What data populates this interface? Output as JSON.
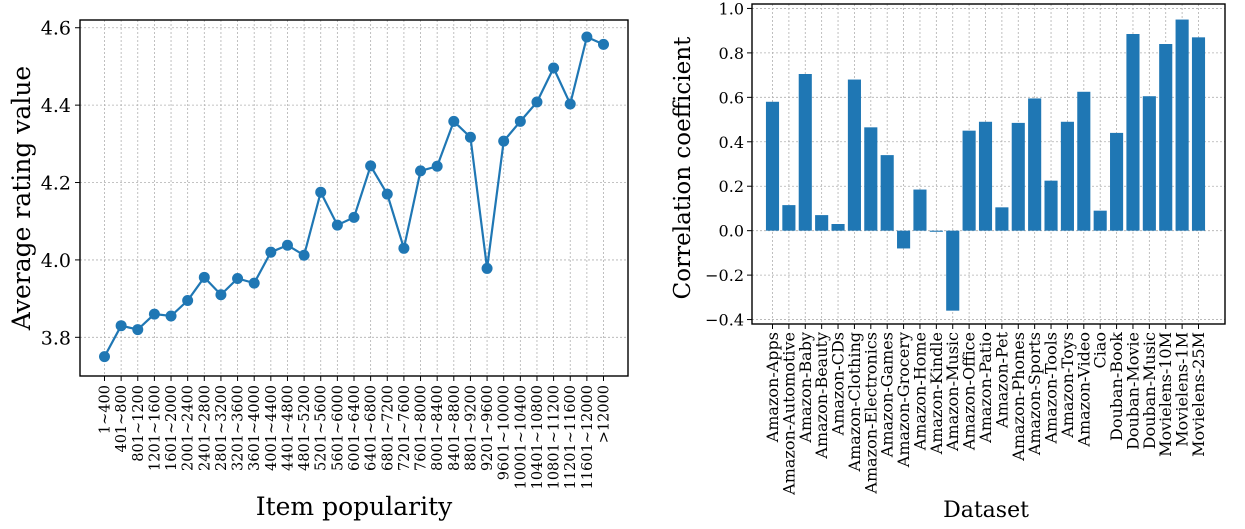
{
  "chart_data": [
    {
      "type": "line",
      "xlabel": "Item popularity",
      "ylabel": "Average rating value",
      "categories": [
        "1~400",
        "401~800",
        "801~1200",
        "1201~1600",
        "1601~2000",
        "2001~2400",
        "2401~2800",
        "2801~3200",
        "3201~3600",
        "3601~4000",
        "4001~4400",
        "4401~4800",
        "4801~5200",
        "5201~5600",
        "5601~6000",
        "6001~6400",
        "6401~6800",
        "6801~7200",
        "7201~7600",
        "7601~8000",
        "8001~8400",
        "8401~8800",
        "8801~9200",
        "9201~9600",
        "9601~10000",
        "10001~10400",
        "10401~10800",
        "10801~11200",
        "11201~11600",
        "11601~12000",
        ">12000"
      ],
      "values": [
        3.75,
        3.83,
        3.82,
        3.86,
        3.855,
        3.895,
        3.955,
        3.91,
        3.952,
        3.94,
        4.02,
        4.038,
        4.012,
        4.175,
        4.09,
        4.11,
        4.243,
        4.17,
        4.03,
        4.23,
        4.242,
        4.358,
        4.317,
        3.978,
        4.307,
        4.358,
        4.408,
        4.496,
        4.403,
        4.576,
        4.557
      ],
      "ylim": [
        3.7,
        4.62
      ],
      "yticks": [
        "3.8",
        "4.0",
        "4.2",
        "4.4",
        "4.6"
      ],
      "grid": true,
      "color": "#1f77b4"
    },
    {
      "type": "bar",
      "xlabel": "Dataset",
      "ylabel": "Correlation coefficient",
      "categories": [
        "Amazon-Apps",
        "Amazon-Automotive",
        "Amazon-Baby",
        "Amazon-Beauty",
        "Amazon-CDs",
        "Amazon-Clothing",
        "Amazon-Electronics",
        "Amazon-Games",
        "Amazon-Grocery",
        "Amazon-Home",
        "Amazon-Kindle",
        "Amazon-Music",
        "Amazon-Office",
        "Amazon-Patio",
        "Amazon-Pet",
        "Amazon-Phones",
        "Amazon-Sports",
        "Amazon-Tools",
        "Amazon-Toys",
        "Amazon-Video",
        "Ciao",
        "Douban-Book",
        "Douban-Movie",
        "Douban-Music",
        "Movielens-10M",
        "Movielens-1M",
        "Movielens-25M"
      ],
      "values": [
        0.58,
        0.115,
        0.705,
        0.07,
        0.03,
        0.68,
        0.465,
        0.34,
        -0.08,
        0.185,
        -0.005,
        -0.36,
        0.45,
        0.49,
        0.105,
        0.485,
        0.595,
        0.225,
        0.49,
        0.625,
        0.09,
        0.44,
        0.885,
        0.605,
        0.84,
        0.95,
        0.87
      ],
      "ylim": [
        -0.42,
        1.02
      ],
      "yticks": [
        "−0.4",
        "−0.2",
        "0.0",
        "0.2",
        "0.4",
        "0.6",
        "0.8",
        "1.0"
      ],
      "grid": true,
      "color": "#1f77b4"
    }
  ]
}
